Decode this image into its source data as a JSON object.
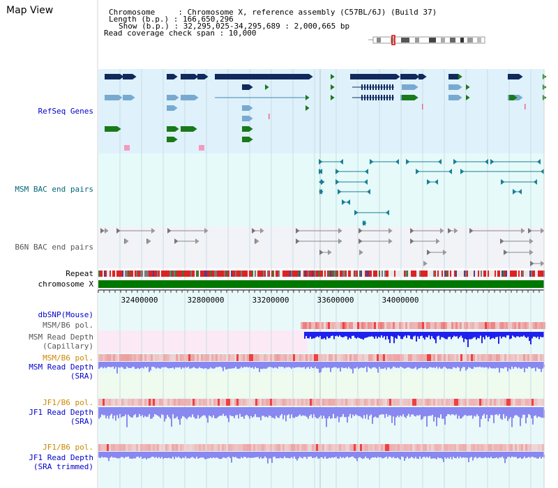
{
  "view": {
    "title": "Map View",
    "info": [
      "Chromosome     : Chromosome X, reference assembly (C57BL/6J) (Build 37)",
      "Length (b.p.) : 166,650,296",
      "Show (b.p.) : 32,295,025-34,295,689 : 2,000,665 bp",
      "Read coverage check span : 10,000"
    ]
  },
  "tracks": {
    "refseq": "RefSeq Genes",
    "msm_bac": "MSM BAC end pairs",
    "b6n_bac": "B6N BAC end pairs",
    "repeat": "Repeat",
    "chromosome": "chromosome X",
    "dbsnp": "dbSNP(Mouse)",
    "msm_pol": "MSM/B6 pol.",
    "msm_depth_cap_1": "MSM Read Depth",
    "msm_depth_cap_2": "(Capillary)",
    "msm_pol_2": "MSM/B6 pol.",
    "msm_depth_sra_1": "MSM Read Depth",
    "msm_depth_sra_2": "(SRA)",
    "jf1_pol": "JF1/B6 pol.",
    "jf1_depth_sra_1": "JF1 Read Depth",
    "jf1_depth_sra_2": "(SRA)",
    "jf1_pol_2": "JF1/B6 pol.",
    "jf1_depth_trim_1": "JF1 Read Depth",
    "jf1_depth_trim_2": "(SRA trimmed)"
  },
  "axis": {
    "ticks": [
      "32400000",
      "32800000",
      "33200000",
      "33600000",
      "34000000"
    ]
  },
  "colors": {
    "refseq_bg": "#dff1fb",
    "bac_bg": "#e6faf9",
    "b6n_bg": "#f2f3f7",
    "gene_dark": "#102a5c",
    "gene_mid": "#3d86b2",
    "gene_light": "#78aad0",
    "gene_green": "#1a7a1a",
    "gene_pink": "#f49ac0",
    "bac_line": "#1a7f97",
    "b6n_line": "#888888",
    "chrom_green": "#007700",
    "depth_blue": "#2020ee",
    "depth_light": "#8888f0",
    "pol_red": "#ee3333"
  }
}
